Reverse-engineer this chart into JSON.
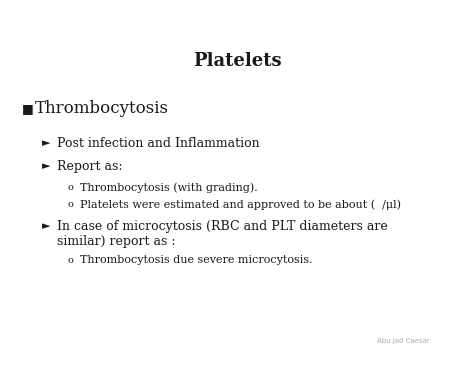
{
  "title": "Platelets",
  "background_color": "#ffffff",
  "text_color": "#1a1a1a",
  "watermark": "Abu Jad Caesar",
  "bullet1_marker": "■",
  "bullet1": "Thrombocytosis",
  "arrow_marker": "►",
  "circle_marker": "o",
  "line1": "Post infection and Inflammation",
  "line2": "Report as:",
  "line3a": "Thrombocytosis (with grading).",
  "line3b": "Platelets were estimated and approved to be about (  /μl)",
  "line4": "In case of microcytosis (RBC and PLT diameters are",
  "line4b": "similar) report as :",
  "line5": "Thrombocytosis due severe microcytosis.",
  "title_fontsize": 13,
  "level1_fontsize": 12,
  "level2_fontsize": 9,
  "level3_fontsize": 8,
  "watermark_fontsize": 5
}
